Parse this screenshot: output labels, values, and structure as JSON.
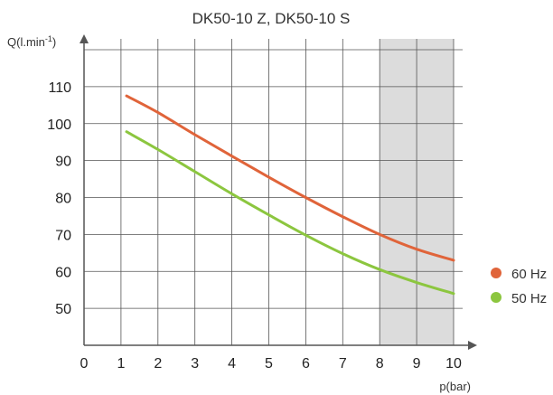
{
  "chart_data": {
    "type": "line",
    "title": "DK50-10 Z, DK50-10 S",
    "xlabel": "p(bar)",
    "ylabel_main": "Q(l.min",
    "ylabel_sup": "-1",
    "ylabel_close": ")",
    "xlim": [
      0,
      10
    ],
    "ylim": [
      40,
      120
    ],
    "x_ticks": [
      "0",
      "1",
      "2",
      "3",
      "4",
      "5",
      "6",
      "7",
      "8",
      "9",
      "10"
    ],
    "y_ticks": [
      "50",
      "60",
      "70",
      "80",
      "90",
      "100",
      "110"
    ],
    "grid": true,
    "shaded_region": {
      "from": 8,
      "to": 10,
      "color": "#dcdcdc"
    },
    "legend_position": "right",
    "series": [
      {
        "name": "60 Hz",
        "color": "#e0643a",
        "points": [
          [
            1.15,
            107.5
          ],
          [
            2,
            103
          ],
          [
            3,
            97
          ],
          [
            4,
            91.2
          ],
          [
            5,
            85.5
          ],
          [
            6,
            80
          ],
          [
            7,
            74.8
          ],
          [
            8,
            70
          ],
          [
            9,
            66
          ],
          [
            10,
            63
          ]
        ]
      },
      {
        "name": "50 Hz",
        "color": "#8cc63f",
        "points": [
          [
            1.15,
            97.8
          ],
          [
            2,
            93
          ],
          [
            3,
            87
          ],
          [
            4,
            81
          ],
          [
            5,
            75.3
          ],
          [
            6,
            69.8
          ],
          [
            7,
            64.8
          ],
          [
            8,
            60.5
          ],
          [
            9,
            57
          ],
          [
            10,
            54
          ]
        ]
      }
    ]
  }
}
